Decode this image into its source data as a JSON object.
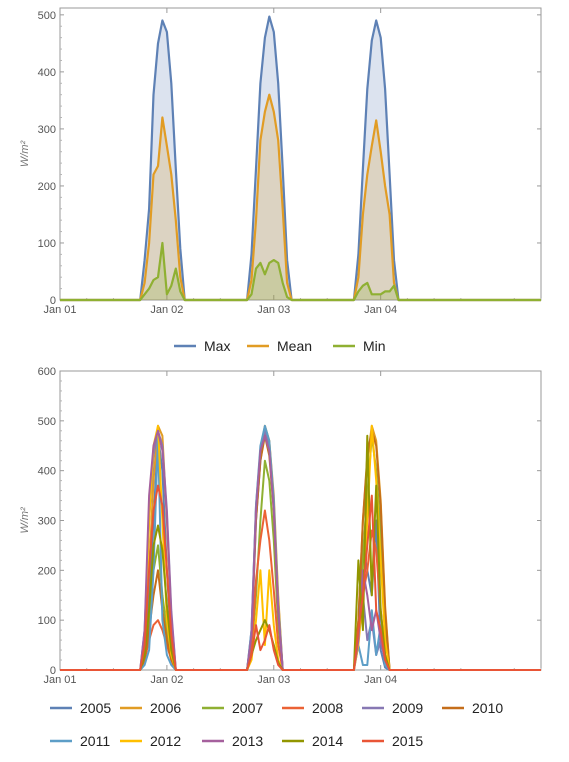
{
  "chart_data": [
    {
      "type": "area",
      "title": "",
      "ylabel": "W/m²",
      "x_ticks": [
        "Jan 01",
        "Jan 02",
        "Jan 03",
        "Jan 04"
      ],
      "x_range_hours": [
        0,
        108
      ],
      "ylim": [
        0,
        500
      ],
      "y_ticks": [
        0,
        100,
        200,
        300,
        400,
        500
      ],
      "legend_position": "bottom",
      "series": [
        {
          "name": "Max",
          "color": "#5e81b5",
          "points": [
            [
              0,
              0
            ],
            [
              5,
              0
            ],
            [
              10,
              0
            ],
            [
              15,
              0
            ],
            [
              18,
              0
            ],
            [
              19,
              70
            ],
            [
              20,
              160
            ],
            [
              21,
              360
            ],
            [
              22,
              450
            ],
            [
              23,
              490
            ],
            [
              24,
              470
            ],
            [
              25,
              380
            ],
            [
              26,
              230
            ],
            [
              27,
              90
            ],
            [
              28,
              0
            ],
            [
              30,
              0
            ],
            [
              35,
              0
            ],
            [
              40,
              0
            ],
            [
              42,
              0
            ],
            [
              43,
              80
            ],
            [
              44,
              230
            ],
            [
              45,
              380
            ],
            [
              46,
              460
            ],
            [
              47,
              497
            ],
            [
              48,
              470
            ],
            [
              49,
              380
            ],
            [
              50,
              230
            ],
            [
              51,
              70
            ],
            [
              52,
              0
            ],
            [
              55,
              0
            ],
            [
              60,
              0
            ],
            [
              65,
              0
            ],
            [
              66,
              0
            ],
            [
              67,
              80
            ],
            [
              68,
              230
            ],
            [
              69,
              370
            ],
            [
              70,
              455
            ],
            [
              71,
              490
            ],
            [
              72,
              460
            ],
            [
              73,
              370
            ],
            [
              74,
              220
            ],
            [
              75,
              70
            ],
            [
              76,
              0
            ],
            [
              80,
              0
            ],
            [
              90,
              0
            ],
            [
              100,
              0
            ],
            [
              108,
              0
            ]
          ]
        },
        {
          "name": "Mean",
          "color": "#e19c24",
          "points": [
            [
              0,
              0
            ],
            [
              5,
              0
            ],
            [
              10,
              0
            ],
            [
              15,
              0
            ],
            [
              18,
              0
            ],
            [
              19,
              30
            ],
            [
              20,
              100
            ],
            [
              21,
              220
            ],
            [
              22,
              235
            ],
            [
              23,
              320
            ],
            [
              24,
              270
            ],
            [
              25,
              220
            ],
            [
              26,
              140
            ],
            [
              27,
              40
            ],
            [
              28,
              0
            ],
            [
              30,
              0
            ],
            [
              35,
              0
            ],
            [
              40,
              0
            ],
            [
              42,
              0
            ],
            [
              43,
              35
            ],
            [
              44,
              140
            ],
            [
              45,
              280
            ],
            [
              46,
              330
            ],
            [
              47,
              360
            ],
            [
              48,
              330
            ],
            [
              49,
              280
            ],
            [
              50,
              160
            ],
            [
              51,
              30
            ],
            [
              52,
              0
            ],
            [
              55,
              0
            ],
            [
              60,
              0
            ],
            [
              65,
              0
            ],
            [
              66,
              0
            ],
            [
              67,
              40
            ],
            [
              68,
              150
            ],
            [
              69,
              220
            ],
            [
              70,
              270
            ],
            [
              71,
              315
            ],
            [
              72,
              260
            ],
            [
              73,
              200
            ],
            [
              74,
              150
            ],
            [
              75,
              30
            ],
            [
              76,
              0
            ],
            [
              80,
              0
            ],
            [
              90,
              0
            ],
            [
              100,
              0
            ],
            [
              108,
              0
            ]
          ]
        },
        {
          "name": "Min",
          "color": "#8fb032",
          "points": [
            [
              0,
              0
            ],
            [
              5,
              0
            ],
            [
              10,
              0
            ],
            [
              15,
              0
            ],
            [
              18,
              0
            ],
            [
              19,
              10
            ],
            [
              20,
              20
            ],
            [
              21,
              35
            ],
            [
              22,
              40
            ],
            [
              23,
              100
            ],
            [
              24,
              10
            ],
            [
              25,
              25
            ],
            [
              26,
              55
            ],
            [
              27,
              15
            ],
            [
              28,
              0
            ],
            [
              30,
              0
            ],
            [
              35,
              0
            ],
            [
              40,
              0
            ],
            [
              42,
              0
            ],
            [
              43,
              10
            ],
            [
              44,
              55
            ],
            [
              45,
              65
            ],
            [
              46,
              45
            ],
            [
              47,
              65
            ],
            [
              48,
              70
            ],
            [
              49,
              65
            ],
            [
              50,
              30
            ],
            [
              51,
              5
            ],
            [
              52,
              0
            ],
            [
              55,
              0
            ],
            [
              60,
              0
            ],
            [
              65,
              0
            ],
            [
              66,
              0
            ],
            [
              67,
              15
            ],
            [
              68,
              25
            ],
            [
              69,
              30
            ],
            [
              70,
              10
            ],
            [
              71,
              10
            ],
            [
              72,
              10
            ],
            [
              73,
              15
            ],
            [
              74,
              15
            ],
            [
              75,
              25
            ],
            [
              76,
              0
            ],
            [
              80,
              0
            ],
            [
              90,
              0
            ],
            [
              100,
              0
            ],
            [
              108,
              0
            ]
          ]
        }
      ]
    },
    {
      "type": "line",
      "title": "",
      "ylabel": "W/m²",
      "x_ticks": [
        "Jan 01",
        "Jan 02",
        "Jan 03",
        "Jan 04"
      ],
      "x_range_hours": [
        0,
        108
      ],
      "ylim": [
        0,
        600
      ],
      "y_ticks": [
        0,
        100,
        200,
        300,
        400,
        500,
        600
      ],
      "legend_position": "bottom",
      "day_starts": [
        18,
        42,
        66
      ],
      "series": [
        {
          "name": "2005",
          "color": "#5e81b5",
          "days": [
            [
              0,
              50,
              150,
              300,
              470,
              400,
              200,
              50,
              0,
              0
            ],
            [
              0,
              60,
              300,
              420,
              480,
              450,
              330,
              140,
              0,
              0
            ],
            [
              0,
              90,
              250,
              200,
              150,
              300,
              40,
              5,
              0,
              0
            ]
          ]
        },
        {
          "name": "2006",
          "color": "#e19c24",
          "days": [
            [
              0,
              60,
              200,
              380,
              490,
              470,
              300,
              100,
              0,
              0
            ],
            [
              0,
              70,
              320,
              440,
              490,
              460,
              350,
              150,
              0,
              0
            ],
            [
              0,
              100,
              300,
              420,
              490,
              460,
              340,
              130,
              0,
              0
            ]
          ]
        },
        {
          "name": "2007",
          "color": "#8fb032",
          "days": [
            [
              0,
              30,
              100,
              200,
              250,
              150,
              80,
              30,
              0,
              0
            ],
            [
              0,
              40,
              150,
              300,
              420,
              380,
              260,
              90,
              0,
              0
            ],
            [
              0,
              70,
              230,
              350,
              470,
              400,
              280,
              90,
              0,
              0
            ]
          ]
        },
        {
          "name": "2008",
          "color": "#eb6235",
          "days": [
            [
              0,
              20,
              60,
              90,
              100,
              80,
              50,
              20,
              0,
              0
            ],
            [
              0,
              40,
              180,
              260,
              320,
              260,
              160,
              50,
              0,
              0
            ],
            [
              0,
              60,
              150,
              200,
              280,
              240,
              120,
              30,
              0,
              0
            ]
          ]
        },
        {
          "name": "2009",
          "color": "#8778b3",
          "days": [
            [
              0,
              80,
              300,
              430,
              480,
              450,
              320,
              120,
              0,
              0
            ],
            [
              0,
              80,
              330,
              440,
              480,
              440,
              330,
              120,
              0,
              0
            ],
            [
              0,
              80,
              150,
              60,
              100,
              30,
              60,
              20,
              0,
              0
            ]
          ]
        },
        {
          "name": "2010",
          "color": "#c56e1a",
          "days": [
            [
              0,
              20,
              80,
              150,
              200,
              120,
              60,
              20,
              0,
              0
            ],
            [
              0,
              70,
              300,
              420,
              470,
              430,
              320,
              120,
              0,
              0
            ],
            [
              0,
              100,
              300,
              430,
              480,
              450,
              330,
              120,
              0,
              0
            ]
          ]
        },
        {
          "name": "2011",
          "color": "#5d9ec7",
          "days": [
            [
              0,
              10,
              40,
              200,
              470,
              100,
              30,
              10,
              0,
              0
            ],
            [
              0,
              80,
              330,
              450,
              490,
              460,
              340,
              130,
              0,
              0
            ],
            [
              0,
              50,
              10,
              10,
              120,
              30,
              90,
              10,
              0,
              0
            ]
          ]
        },
        {
          "name": "2012",
          "color": "#ffbf00",
          "days": [
            [
              0,
              50,
              300,
              450,
              490,
              300,
              100,
              30,
              0,
              0
            ],
            [
              0,
              20,
              100,
              200,
              50,
              200,
              90,
              20,
              0,
              0
            ],
            [
              0,
              50,
              150,
              300,
              490,
              380,
              220,
              60,
              0,
              0
            ]
          ]
        },
        {
          "name": "2013",
          "color": "#a5609d",
          "days": [
            [
              0,
              80,
              350,
              450,
              480,
              440,
              310,
              110,
              0,
              0
            ],
            [
              0,
              70,
              320,
              440,
              470,
              440,
              320,
              120,
              0,
              0
            ],
            [
              0,
              60,
              200,
              150,
              80,
              120,
              60,
              20,
              0,
              0
            ]
          ]
        },
        {
          "name": "2014",
          "color": "#929600",
          "days": [
            [
              0,
              30,
              120,
              250,
              290,
              240,
              130,
              40,
              0,
              0
            ],
            [
              0,
              30,
              60,
              80,
              100,
              80,
              50,
              15,
              0,
              0
            ],
            [
              0,
              220,
              80,
              470,
              150,
              370,
              120,
              30,
              0,
              0
            ]
          ]
        },
        {
          "name": "2015",
          "color": "#e95536",
          "days": [
            [
              0,
              50,
              200,
              320,
              370,
              330,
              200,
              70,
              0,
              0
            ],
            [
              0,
              30,
              90,
              40,
              60,
              90,
              40,
              10,
              0,
              0
            ],
            [
              0,
              80,
              150,
              250,
              350,
              120,
              80,
              20,
              0,
              0
            ]
          ]
        }
      ]
    }
  ]
}
